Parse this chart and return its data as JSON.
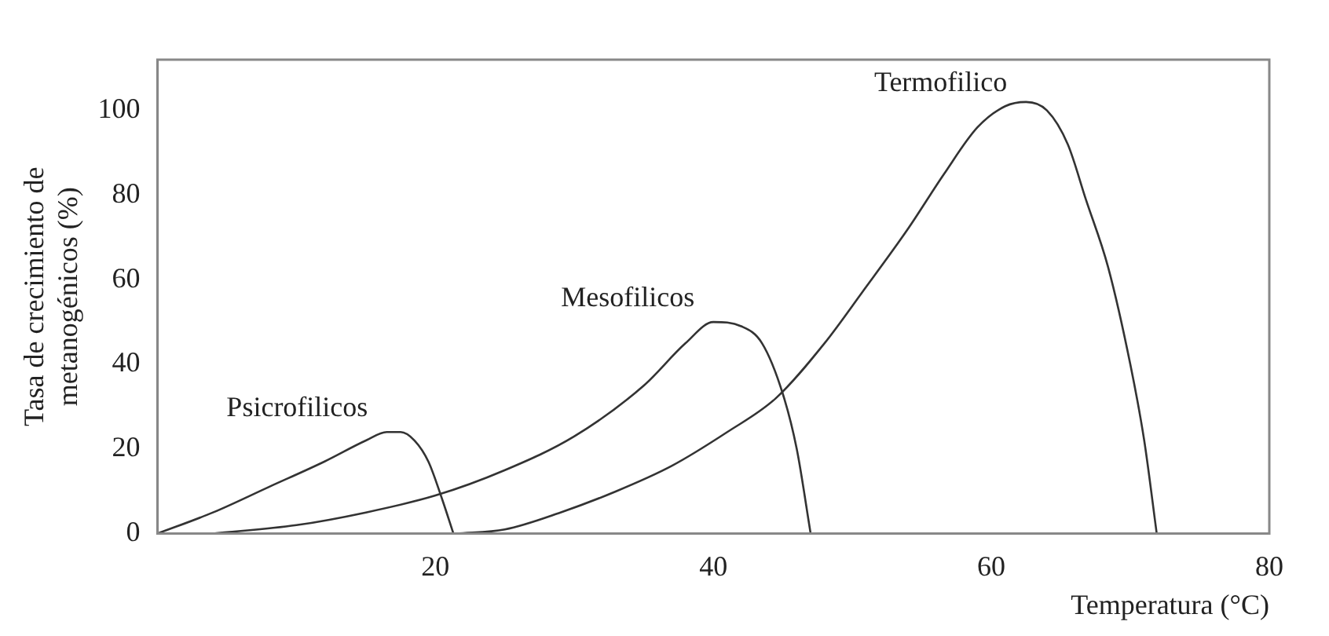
{
  "chart_data": {
    "type": "line",
    "xlabel": "Temperatura (°C)",
    "ylabel": "Tasa de crecimiento de\nmetanogénicos (%)",
    "xlim": [
      0,
      80
    ],
    "xticks": [
      20,
      40,
      60,
      80
    ],
    "ylim": [
      0,
      112
    ],
    "yticks": [
      0,
      20,
      40,
      60,
      80,
      100
    ],
    "grid": false,
    "legend": false,
    "marker": "none",
    "line_style": "solid",
    "series": [
      {
        "name": "Psicrofilicos",
        "color": "#333333",
        "x": [
          0,
          4,
          8,
          12,
          15,
          16.5,
          17.5,
          18.5,
          19.5,
          20.5,
          21.3
        ],
        "values": [
          0,
          5,
          11,
          17,
          22,
          24,
          24,
          22,
          17,
          8,
          0
        ]
      },
      {
        "name": "Mesofilicos",
        "color": "#333333",
        "x": [
          4,
          10,
          15,
          20,
          25,
          30,
          35,
          38,
          40,
          42,
          43.5,
          45,
          46,
          47
        ],
        "values": [
          0,
          2,
          5,
          9,
          15,
          23,
          35,
          45,
          50,
          49,
          45,
          33,
          20,
          0
        ]
      },
      {
        "name": "Termofilico",
        "color": "#333333",
        "x": [
          21.5,
          25,
          29,
          33,
          37,
          41,
          44.5,
          48,
          50.7,
          54,
          56.6,
          59,
          61,
          62.5,
          64,
          65.5,
          66.8,
          68.4,
          70,
          71,
          71.9
        ],
        "values": [
          0,
          1,
          5,
          10,
          16,
          24,
          32,
          45,
          57,
          72,
          85,
          96,
          101,
          102,
          100,
          92,
          79,
          63,
          40,
          22,
          0
        ]
      }
    ]
  }
}
